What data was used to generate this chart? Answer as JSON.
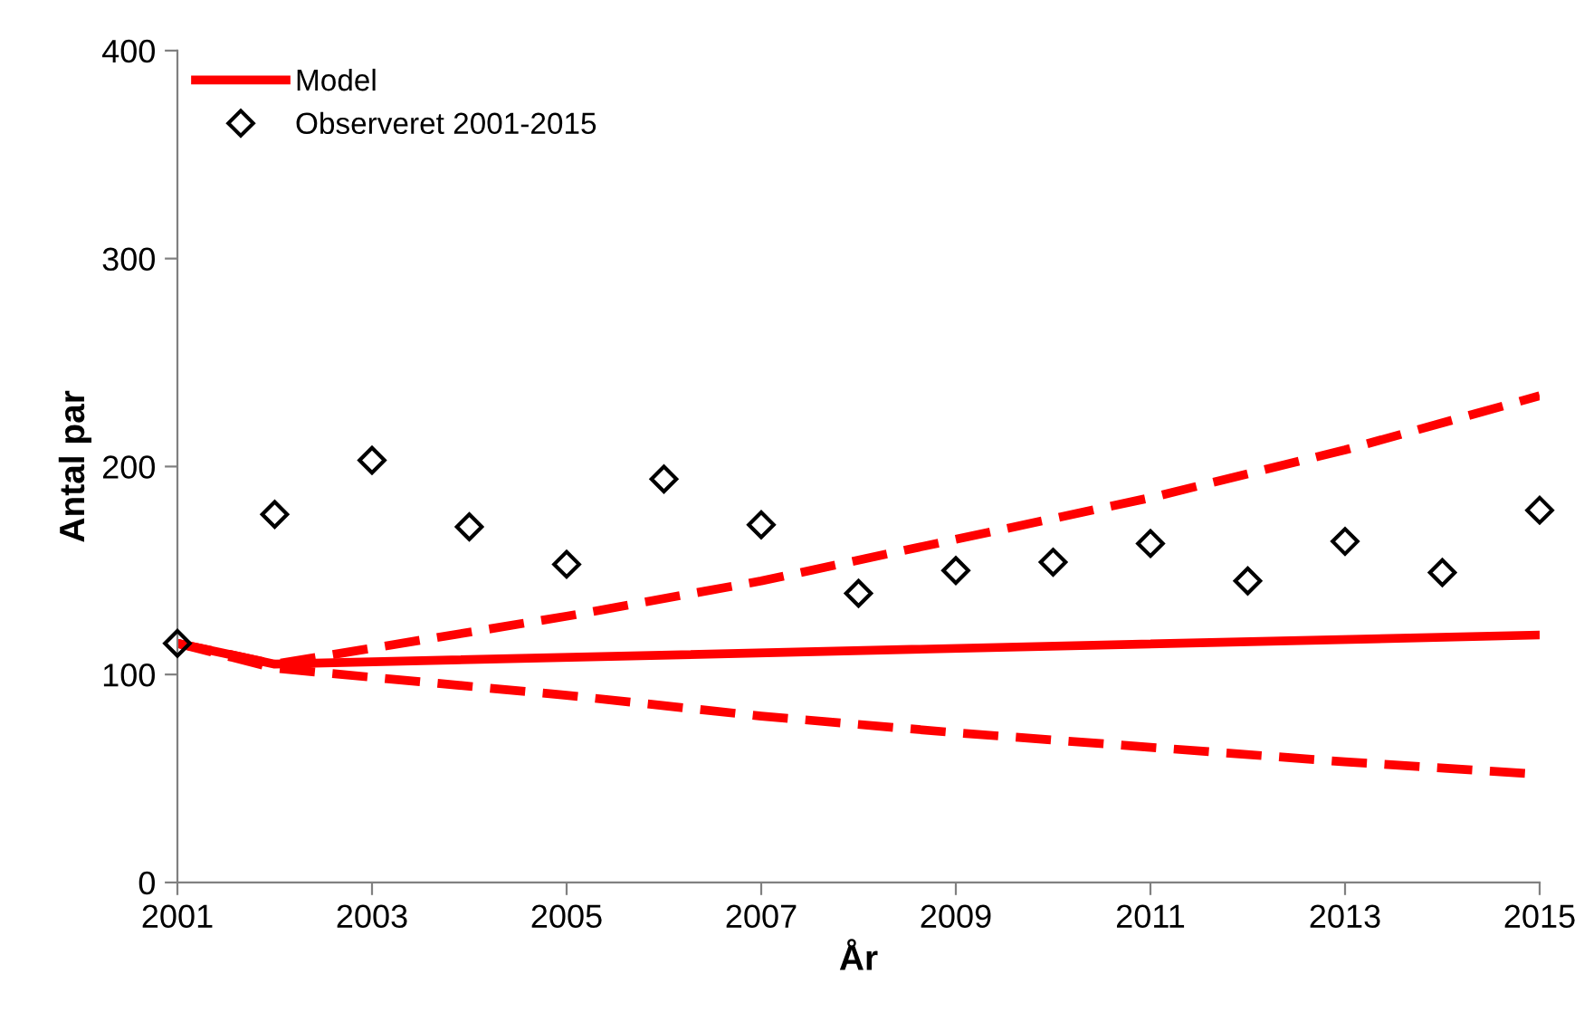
{
  "chart_data": {
    "type": "line",
    "xlabel": "År",
    "ylabel": "Antal par",
    "xlim": [
      2001,
      2015
    ],
    "ylim": [
      0,
      400
    ],
    "xticks": [
      2001,
      2003,
      2005,
      2007,
      2009,
      2011,
      2013,
      2015
    ],
    "yticks": [
      0,
      100,
      200,
      300,
      400
    ],
    "grid": false,
    "legend": "top left",
    "series": [
      {
        "name": "Model",
        "color": "#ff0000",
        "line_style": "solid",
        "marker": "none",
        "x": [
          2001,
          2002,
          2015
        ],
        "values": [
          115,
          105,
          119
        ]
      },
      {
        "color": "#ff0000",
        "line_style": "dashed",
        "marker": "none",
        "x": [
          2001,
          2002,
          2005,
          2007,
          2009,
          2011,
          2013,
          2015
        ],
        "values": [
          115,
          105,
          128,
          145,
          165,
          185,
          208,
          234
        ]
      },
      {
        "color": "#ff0000",
        "line_style": "dashed",
        "marker": "none",
        "x": [
          2001,
          2002,
          2005,
          2007,
          2009,
          2011,
          2013,
          2015
        ],
        "values": [
          115,
          103,
          90,
          80,
          72,
          65,
          58,
          52
        ]
      },
      {
        "name": "Observeret 2001-2015",
        "color": "#000000",
        "type": "scatter",
        "marker": "diamond",
        "x": [
          2001,
          2002,
          2003,
          2004,
          2005,
          2006,
          2007,
          2008,
          2009,
          2010,
          2011,
          2012,
          2013,
          2014,
          2015
        ],
        "values": [
          115,
          177,
          203,
          171,
          153,
          194,
          172,
          139,
          150,
          154,
          163,
          145,
          164,
          149,
          179
        ]
      }
    ]
  }
}
